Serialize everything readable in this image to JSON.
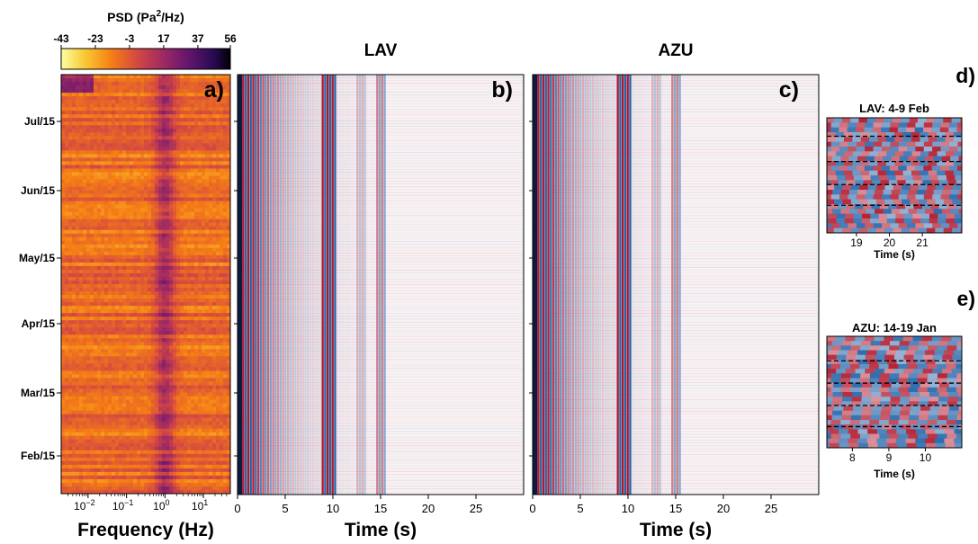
{
  "chart_data": {
    "type": "heatmap",
    "colorbar": {
      "title": "PSD (Pa²/Hz)",
      "title_main": "PSD (Pa",
      "title_sup": "2",
      "title_tail": "/Hz)",
      "ticks": [
        "-43",
        "-23",
        "-3",
        "17",
        "37",
        "56"
      ],
      "range": [
        -43,
        56
      ]
    },
    "panel_a": {
      "letter": "a)",
      "xlabel": "Frequency (Hz)",
      "x_scale": "log",
      "xlim": [
        0.002,
        50
      ],
      "x_ticks": [
        {
          "value": 0.01,
          "base": "10",
          "exp": "−2"
        },
        {
          "value": 0.1,
          "base": "10",
          "exp": "−1"
        },
        {
          "value": 1,
          "base": "10",
          "exp": "0"
        },
        {
          "value": 10,
          "base": "10",
          "exp": "1"
        }
      ],
      "y_ticks": [
        "Jul/15",
        "Jun/15",
        "May/15",
        "Apr/15",
        "Mar/15",
        "Feb/15"
      ],
      "peak_frequency_hz": 1.0
    },
    "panel_b": {
      "letter": "b)",
      "title": "LAV",
      "xlabel": "Time (s)",
      "xlim": [
        0,
        30
      ],
      "x_ticks": [
        "0",
        "5",
        "10",
        "15",
        "20",
        "25"
      ]
    },
    "panel_c": {
      "letter": "c)",
      "title": "AZU",
      "xlabel": "Time (s)",
      "xlim": [
        0,
        30
      ],
      "x_ticks": [
        "0",
        "5",
        "10",
        "15",
        "20",
        "25"
      ]
    },
    "panel_d": {
      "letter": "d)",
      "title": "LAV: 4-9 Feb",
      "xlabel": "Time (s)",
      "xlim": [
        18.1,
        22.2
      ],
      "x_ticks": [
        "19",
        "20",
        "21"
      ]
    },
    "panel_e": {
      "letter": "e)",
      "title": "AZU: 14-19 Jan",
      "xlabel": "Time (s)",
      "xlim": [
        7.3,
        11.0
      ],
      "x_ticks": [
        "8",
        "9",
        "10"
      ]
    }
  },
  "colors": {
    "inferno_like": [
      "#fcfda4",
      "#f9c932",
      "#f57d15",
      "#d44842",
      "#9f2a63",
      "#65156e",
      "#280b53",
      "#000004"
    ],
    "seismic_red": "#b2182b",
    "seismic_blue": "#2166ac",
    "seismic_dark": "#0b1a40"
  }
}
